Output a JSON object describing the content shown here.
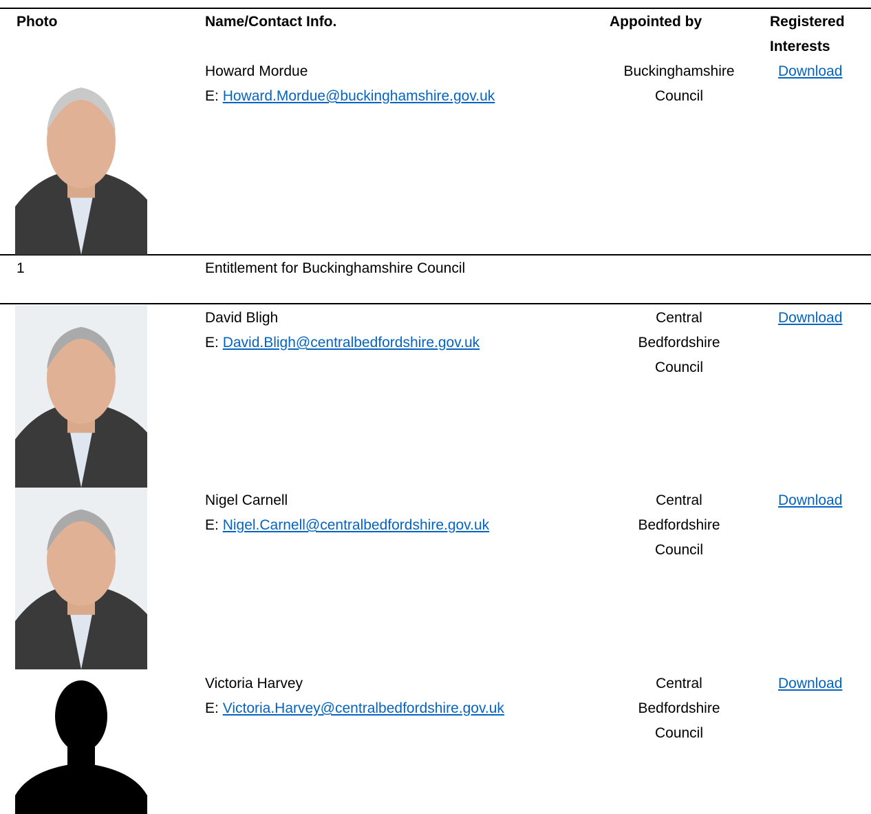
{
  "header": {
    "photo": "Photo",
    "name_contact": "Name/Contact Info.",
    "appointed_by": "Appointed by",
    "registered_interests": "Registered Interests"
  },
  "rows": [
    {
      "name": "Howard Mordue",
      "email_prefix": "E:",
      "email": "Howard.Mordue@buckinghamshire.gov.uk",
      "appointed_by": "Buckinghamshire Council",
      "interests": "Download"
    },
    {
      "name": "David Bligh",
      "email_prefix": "E:",
      "email": "David.Bligh@centralbedfordshire.gov.uk",
      "appointed_by": "Central Bedfordshire Council",
      "interests": "Download"
    },
    {
      "name": "Nigel Carnell",
      "email_prefix": "E:",
      "email": "Nigel.Carnell@centralbedfordshire.gov.uk",
      "appointed_by": "Central Bedfordshire Council",
      "interests": "Download"
    },
    {
      "name": "Victoria Harvey",
      "email_prefix": "E:",
      "email": "Victoria.Harvey@centralbedfordshire.gov.uk",
      "appointed_by": "Central Bedfordshire Council",
      "interests": "Download"
    }
  ],
  "entitlement": {
    "number": "1",
    "text": "Entitlement for Buckinghamshire Council"
  }
}
